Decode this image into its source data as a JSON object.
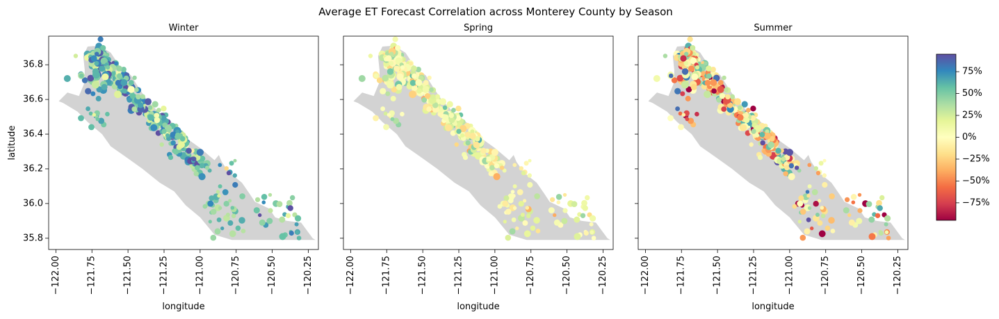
{
  "title": "Average ET Forecast Correlation across Monterey County by Season",
  "chart_data": {
    "type": "scatter",
    "title": "Average ET Forecast Correlation across Monterey County by Season",
    "xlabel": "longitude",
    "ylabel": "latitude",
    "xlim": [
      -122.05,
      -120.18
    ],
    "ylim": [
      35.735,
      36.965
    ],
    "xticks": [
      -122.0,
      -121.75,
      -121.5,
      -121.25,
      -121.0,
      -120.75,
      -120.5,
      -120.25
    ],
    "xtick_labels": [
      "−122.00",
      "−121.75",
      "−121.50",
      "−121.25",
      "−121.00",
      "−120.75",
      "−120.50",
      "−120.25"
    ],
    "yticks": [
      35.8,
      36.0,
      36.2,
      36.4,
      36.6,
      36.8
    ],
    "ytick_labels": [
      "35.8",
      "36.0",
      "36.2",
      "36.4",
      "36.6",
      "36.8"
    ],
    "grid": false,
    "background_region": "Monterey County outline (light gray fill)",
    "region_color": "#d3d3d3",
    "colormap": "Spectral",
    "colorbar": {
      "range": [
        -95,
        95
      ],
      "ticks": [
        75,
        50,
        25,
        0,
        -25,
        -50,
        -75
      ],
      "tick_labels": [
        "75%",
        "50%",
        "25%",
        "0%",
        "−25%",
        "−50%",
        "−75%"
      ]
    },
    "panels": [
      {
        "name": "Winter",
        "correlation_center": 55,
        "correlation_spread": 22
      },
      {
        "name": "Spring",
        "correlation_center": 8,
        "correlation_spread": 20
      },
      {
        "name": "Summer",
        "correlation_center": -10,
        "correlation_spread": 45
      }
    ]
  }
}
